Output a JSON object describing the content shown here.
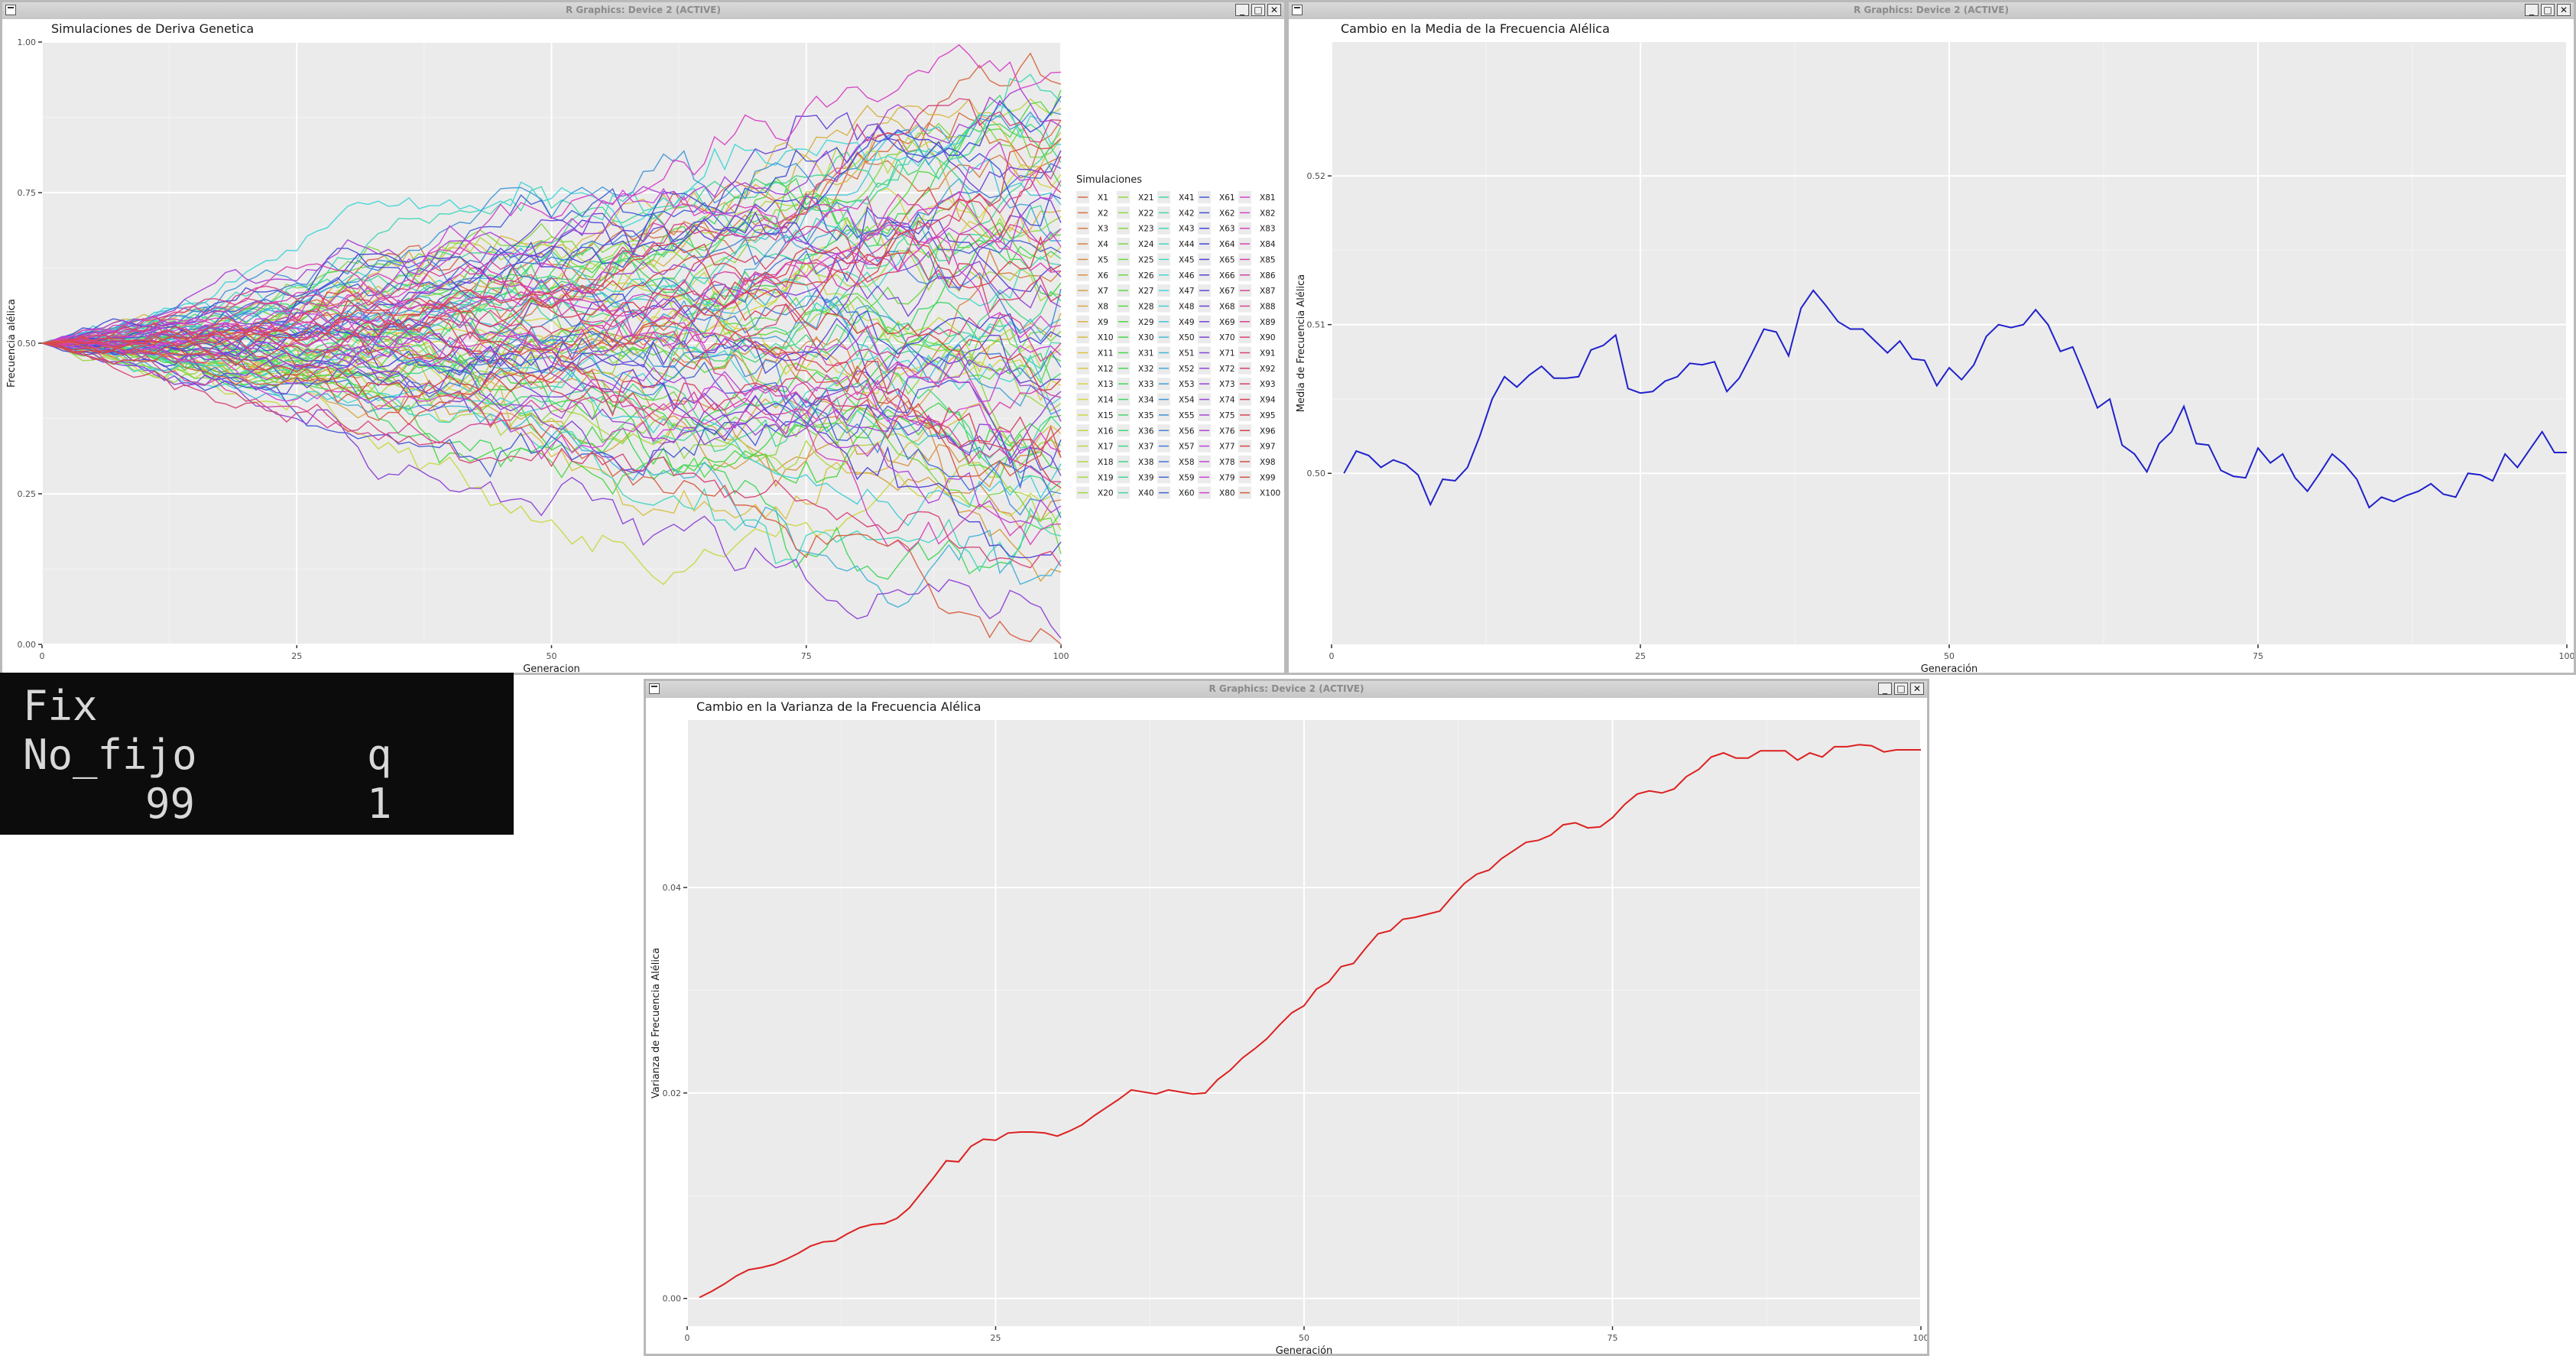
{
  "windows": {
    "w1_title": "R Graphics: Device 2 (ACTIVE)",
    "w2_title": "R Graphics: Device 2 (ACTIVE)",
    "w3_title": "R Graphics: Device 2 (ACTIVE)",
    "min_glyph": "_",
    "max_glyph": "□",
    "close_glyph": "✕"
  },
  "console": {
    "line1": "Fix",
    "line2_a": "No_fijo",
    "line2_b": "q",
    "line3_a": "99",
    "line3_b": "1"
  },
  "colors": {
    "panel_bg": "#ebebeb",
    "grid": "#ffffff",
    "mean_line": "#2020cc",
    "var_line": "#dd2020"
  },
  "chart_data": [
    {
      "type": "line",
      "title": "Simulaciones de Deriva Genetica",
      "xlabel": "Generacion",
      "ylabel": "Frecuencia alélica",
      "xlim": [
        0,
        100
      ],
      "ylim": [
        0,
        1
      ],
      "x_ticks": [
        "0",
        "25",
        "50",
        "75",
        "100"
      ],
      "y_ticks": [
        "0.00",
        "0.25",
        "0.50",
        "0.75",
        "1.00"
      ],
      "legend_title": "Simulaciones",
      "legend_position": "right",
      "series_names": [
        "X1",
        "X2",
        "X3",
        "X4",
        "X5",
        "X6",
        "X7",
        "X8",
        "X9",
        "X10",
        "X11",
        "X12",
        "X13",
        "X14",
        "X15",
        "X16",
        "X17",
        "X18",
        "X19",
        "X20",
        "X21",
        "X22",
        "X23",
        "X24",
        "X25",
        "X26",
        "X27",
        "X28",
        "X29",
        "X30",
        "X31",
        "X32",
        "X33",
        "X34",
        "X35",
        "X36",
        "X37",
        "X38",
        "X39",
        "X40",
        "X41",
        "X42",
        "X43",
        "X44",
        "X45",
        "X46",
        "X47",
        "X48",
        "X49",
        "X50",
        "X51",
        "X52",
        "X53",
        "X54",
        "X55",
        "X56",
        "X57",
        "X58",
        "X59",
        "X60",
        "X61",
        "X62",
        "X63",
        "X64",
        "X65",
        "X66",
        "X67",
        "X68",
        "X69",
        "X70",
        "X71",
        "X72",
        "X73",
        "X74",
        "X75",
        "X76",
        "X77",
        "X78",
        "X79",
        "X80",
        "X81",
        "X82",
        "X83",
        "X84",
        "X85",
        "X86",
        "X87",
        "X88",
        "X89",
        "X90",
        "X91",
        "X92",
        "X93",
        "X94",
        "X95",
        "X96",
        "X97",
        "X98",
        "X99",
        "X100"
      ],
      "start_value": 0.5,
      "final_values": [
        0.93,
        0.87,
        0.81,
        0.62,
        0.24,
        0.31,
        0.12,
        0.55,
        0.72,
        0.85,
        0.35,
        0.66,
        0.43,
        0.78,
        0.26,
        0.49,
        0.89,
        0.19,
        0.58,
        0.4,
        0.71,
        0.33,
        0.84,
        0.52,
        0.15,
        0.68,
        0.47,
        0.92,
        0.29,
        0.6,
        0.38,
        0.76,
        0.22,
        0.64,
        0.45,
        0.86,
        0.27,
        0.57,
        0.8,
        0.36,
        0.69,
        0.5,
        0.9,
        0.18,
        0.63,
        0.41,
        0.83,
        0.3,
        0.73,
        0.54,
        0.14,
        0.67,
        0.39,
        0.88,
        0.25,
        0.59,
        0.46,
        0.79,
        0.21,
        0.65,
        0.34,
        0.74,
        0.51,
        0.91,
        0.17,
        0.61,
        0.44,
        0.82,
        0.28,
        0.7,
        0.42,
        0.01,
        0.56,
        0.37,
        0.86,
        0.23,
        0.66,
        0.48,
        0.77,
        0.32,
        0.53,
        0.95,
        0.2,
        0.62,
        0.41,
        0.81,
        0.27,
        0.69,
        0.5,
        0.87,
        0.13,
        0.58,
        0.36,
        0.75,
        0.26,
        0.63,
        0.44,
        0.84,
        0.31,
        0.0
      ]
    },
    {
      "type": "line",
      "title": "Cambio en la Media de la Frecuencia Alélica",
      "xlabel": "Generación",
      "ylabel": "Media de Frecuencia Alélica",
      "xlim": [
        0,
        100
      ],
      "ylim": [
        0.4885,
        0.529
      ],
      "x_ticks": [
        "0",
        "25",
        "50",
        "75",
        "100"
      ],
      "y_ticks": [
        "0.50",
        "0.51",
        "0.52"
      ],
      "x": [
        1,
        2,
        3,
        4,
        5,
        6,
        7,
        8,
        9,
        10,
        11,
        12,
        13,
        14,
        15,
        16,
        17,
        18,
        19,
        20,
        21,
        22,
        23,
        24,
        25,
        26,
        27,
        28,
        29,
        30,
        31,
        32,
        33,
        34,
        35,
        36,
        37,
        38,
        39,
        40,
        41,
        42,
        43,
        44,
        45,
        46,
        47,
        48,
        49,
        50,
        51,
        52,
        53,
        54,
        55,
        56,
        57,
        58,
        59,
        60,
        61,
        62,
        63,
        64,
        65,
        66,
        67,
        68,
        69,
        70,
        71,
        72,
        73,
        74,
        75,
        76,
        77,
        78,
        79,
        80,
        81,
        82,
        83,
        84,
        85,
        86,
        87,
        88,
        89,
        90,
        91,
        92,
        93,
        94,
        95,
        96,
        97,
        98,
        99,
        100
      ],
      "values": [
        0.5,
        0.5015,
        0.5012,
        0.5004,
        0.5009,
        0.5006,
        0.4999,
        0.4979,
        0.4996,
        0.4995,
        0.5004,
        0.5025,
        0.505,
        0.5065,
        0.5058,
        0.5066,
        0.5072,
        0.5064,
        0.5064,
        0.5065,
        0.5083,
        0.5086,
        0.5093,
        0.5057,
        0.5054,
        0.5055,
        0.5062,
        0.5065,
        0.5074,
        0.5073,
        0.5075,
        0.5055,
        0.5064,
        0.508,
        0.5097,
        0.5095,
        0.5079,
        0.5111,
        0.5123,
        0.5113,
        0.5102,
        0.5097,
        0.5097,
        0.5089,
        0.5081,
        0.5089,
        0.5077,
        0.5076,
        0.5059,
        0.5071,
        0.5063,
        0.5073,
        0.5092,
        0.51,
        0.5098,
        0.51,
        0.511,
        0.51,
        0.5082,
        0.5085,
        0.5065,
        0.5044,
        0.505,
        0.5019,
        0.5013,
        0.5001,
        0.502,
        0.5028,
        0.5045,
        0.502,
        0.5019,
        0.5002,
        0.4998,
        0.4997,
        0.5017,
        0.5007,
        0.5013,
        0.4997,
        0.4988,
        0.5,
        0.5013,
        0.5006,
        0.4996,
        0.4977,
        0.4984,
        0.4981,
        0.4985,
        0.4988,
        0.4993,
        0.4986,
        0.4984,
        0.5,
        0.4999,
        0.4995,
        0.5013,
        0.5004,
        0.5016,
        0.5028,
        0.5014,
        0.5014
      ]
    },
    {
      "type": "line",
      "title": "Cambio en la Varianza de la Frecuencia Alélica",
      "xlabel": "Generación",
      "ylabel": "Varianza de Frecuencia Alélica",
      "xlim": [
        0,
        100
      ],
      "ylim": [
        -0.0027,
        0.0563
      ],
      "x_ticks": [
        "0",
        "25",
        "50",
        "75",
        "100"
      ],
      "y_ticks": [
        "0.00",
        "0.02",
        "0.04"
      ],
      "x": [
        1,
        2,
        3,
        4,
        5,
        6,
        7,
        8,
        9,
        10,
        11,
        12,
        13,
        14,
        15,
        16,
        17,
        18,
        19,
        20,
        21,
        22,
        23,
        24,
        25,
        26,
        27,
        28,
        29,
        30,
        31,
        32,
        33,
        34,
        35,
        36,
        37,
        38,
        39,
        40,
        41,
        42,
        43,
        44,
        45,
        46,
        47,
        48,
        49,
        50,
        51,
        52,
        53,
        54,
        55,
        56,
        57,
        58,
        59,
        60,
        61,
        62,
        63,
        64,
        65,
        66,
        67,
        68,
        69,
        70,
        71,
        72,
        73,
        74,
        75,
        76,
        77,
        78,
        79,
        80,
        81,
        82,
        83,
        84,
        85,
        86,
        87,
        88,
        89,
        90,
        91,
        92,
        93,
        94,
        95,
        96,
        97,
        98,
        99,
        100
      ],
      "values": [
        0.0001,
        0.0007,
        0.0014,
        0.0022,
        0.0028,
        0.003,
        0.0033,
        0.0038,
        0.0044,
        0.0051,
        0.0055,
        0.0056,
        0.0063,
        0.0069,
        0.0072,
        0.0073,
        0.0078,
        0.0088,
        0.0103,
        0.0118,
        0.0134,
        0.0133,
        0.0148,
        0.0155,
        0.0154,
        0.0161,
        0.0162,
        0.0162,
        0.0161,
        0.0158,
        0.0163,
        0.0169,
        0.0178,
        0.0186,
        0.0194,
        0.0203,
        0.0201,
        0.0199,
        0.0203,
        0.0201,
        0.0199,
        0.02,
        0.0213,
        0.0222,
        0.0234,
        0.0243,
        0.0253,
        0.0266,
        0.0278,
        0.0285,
        0.0301,
        0.0308,
        0.0323,
        0.0326,
        0.0341,
        0.0355,
        0.0358,
        0.0369,
        0.0371,
        0.0374,
        0.0377,
        0.0391,
        0.0404,
        0.0413,
        0.0417,
        0.0428,
        0.0436,
        0.0444,
        0.0446,
        0.0451,
        0.0461,
        0.0463,
        0.0458,
        0.0459,
        0.0468,
        0.0481,
        0.0491,
        0.0494,
        0.0492,
        0.0496,
        0.0508,
        0.0515,
        0.0527,
        0.0531,
        0.0526,
        0.0526,
        0.0533,
        0.0533,
        0.0533,
        0.0524,
        0.0531,
        0.0527,
        0.0537,
        0.0537,
        0.0539,
        0.0538,
        0.0532,
        0.0534,
        0.0534,
        0.0534
      ]
    }
  ]
}
